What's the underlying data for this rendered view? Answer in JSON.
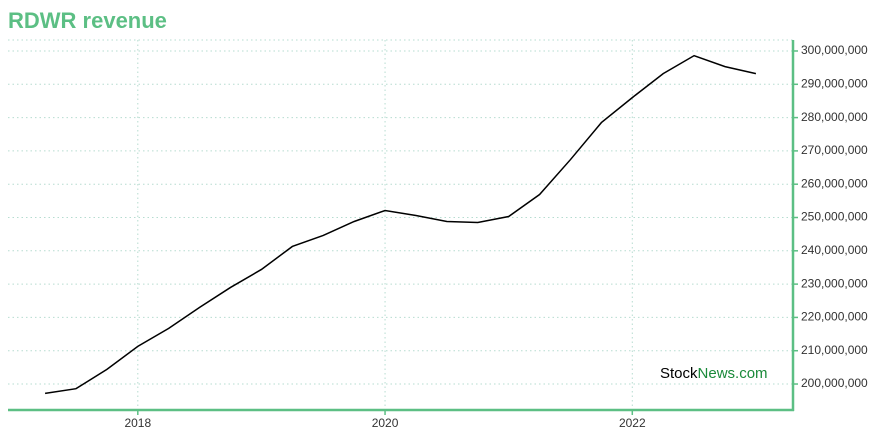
{
  "chart_data": {
    "type": "line",
    "title": "RDWR revenue",
    "watermark": [
      "Stock",
      "News.com"
    ],
    "x": [
      2017.25,
      2017.5,
      2017.75,
      2018.0,
      2018.25,
      2018.5,
      2018.75,
      2019.0,
      2019.25,
      2019.5,
      2019.75,
      2020.0,
      2020.25,
      2020.5,
      2020.75,
      2021.0,
      2021.25,
      2021.5,
      2021.75,
      2022.0,
      2022.25,
      2022.5,
      2022.75,
      2023.0
    ],
    "series": [
      {
        "name": "RDWR revenue",
        "color": "#000000",
        "values": [
          197200000,
          198600000,
          204400000,
          211300000,
          216700000,
          223000000,
          229000000,
          234400000,
          241300000,
          244600000,
          248800000,
          252100000,
          250600000,
          248800000,
          248500000,
          250300000,
          256900000,
          267400000,
          278500000,
          286000000,
          293200000,
          298600000,
          295300000,
          293200000
        ]
      }
    ],
    "xlim": [
      2016.95,
      2023.3
    ],
    "xticks": [
      2018,
      2020,
      2022
    ],
    "ylim": [
      192200000,
      303300000
    ],
    "yticks": [
      {
        "value": 200000000,
        "label": "200,000,000"
      },
      {
        "value": 210000000,
        "label": "210,000,000"
      },
      {
        "value": 220000000,
        "label": "220,000,000"
      },
      {
        "value": 230000000,
        "label": "230,000,000"
      },
      {
        "value": 240000000,
        "label": "240,000,000"
      },
      {
        "value": 250000000,
        "label": "250,000,000"
      },
      {
        "value": 260000000,
        "label": "260,000,000"
      },
      {
        "value": 270000000,
        "label": "270,000,000"
      },
      {
        "value": 280000000,
        "label": "280,000,000"
      },
      {
        "value": 290000000,
        "label": "290,000,000"
      },
      {
        "value": 300000000,
        "label": "300,000,000"
      }
    ],
    "grid": true,
    "axis_color": "#5cbf84",
    "title_color": "#5cbf84"
  }
}
